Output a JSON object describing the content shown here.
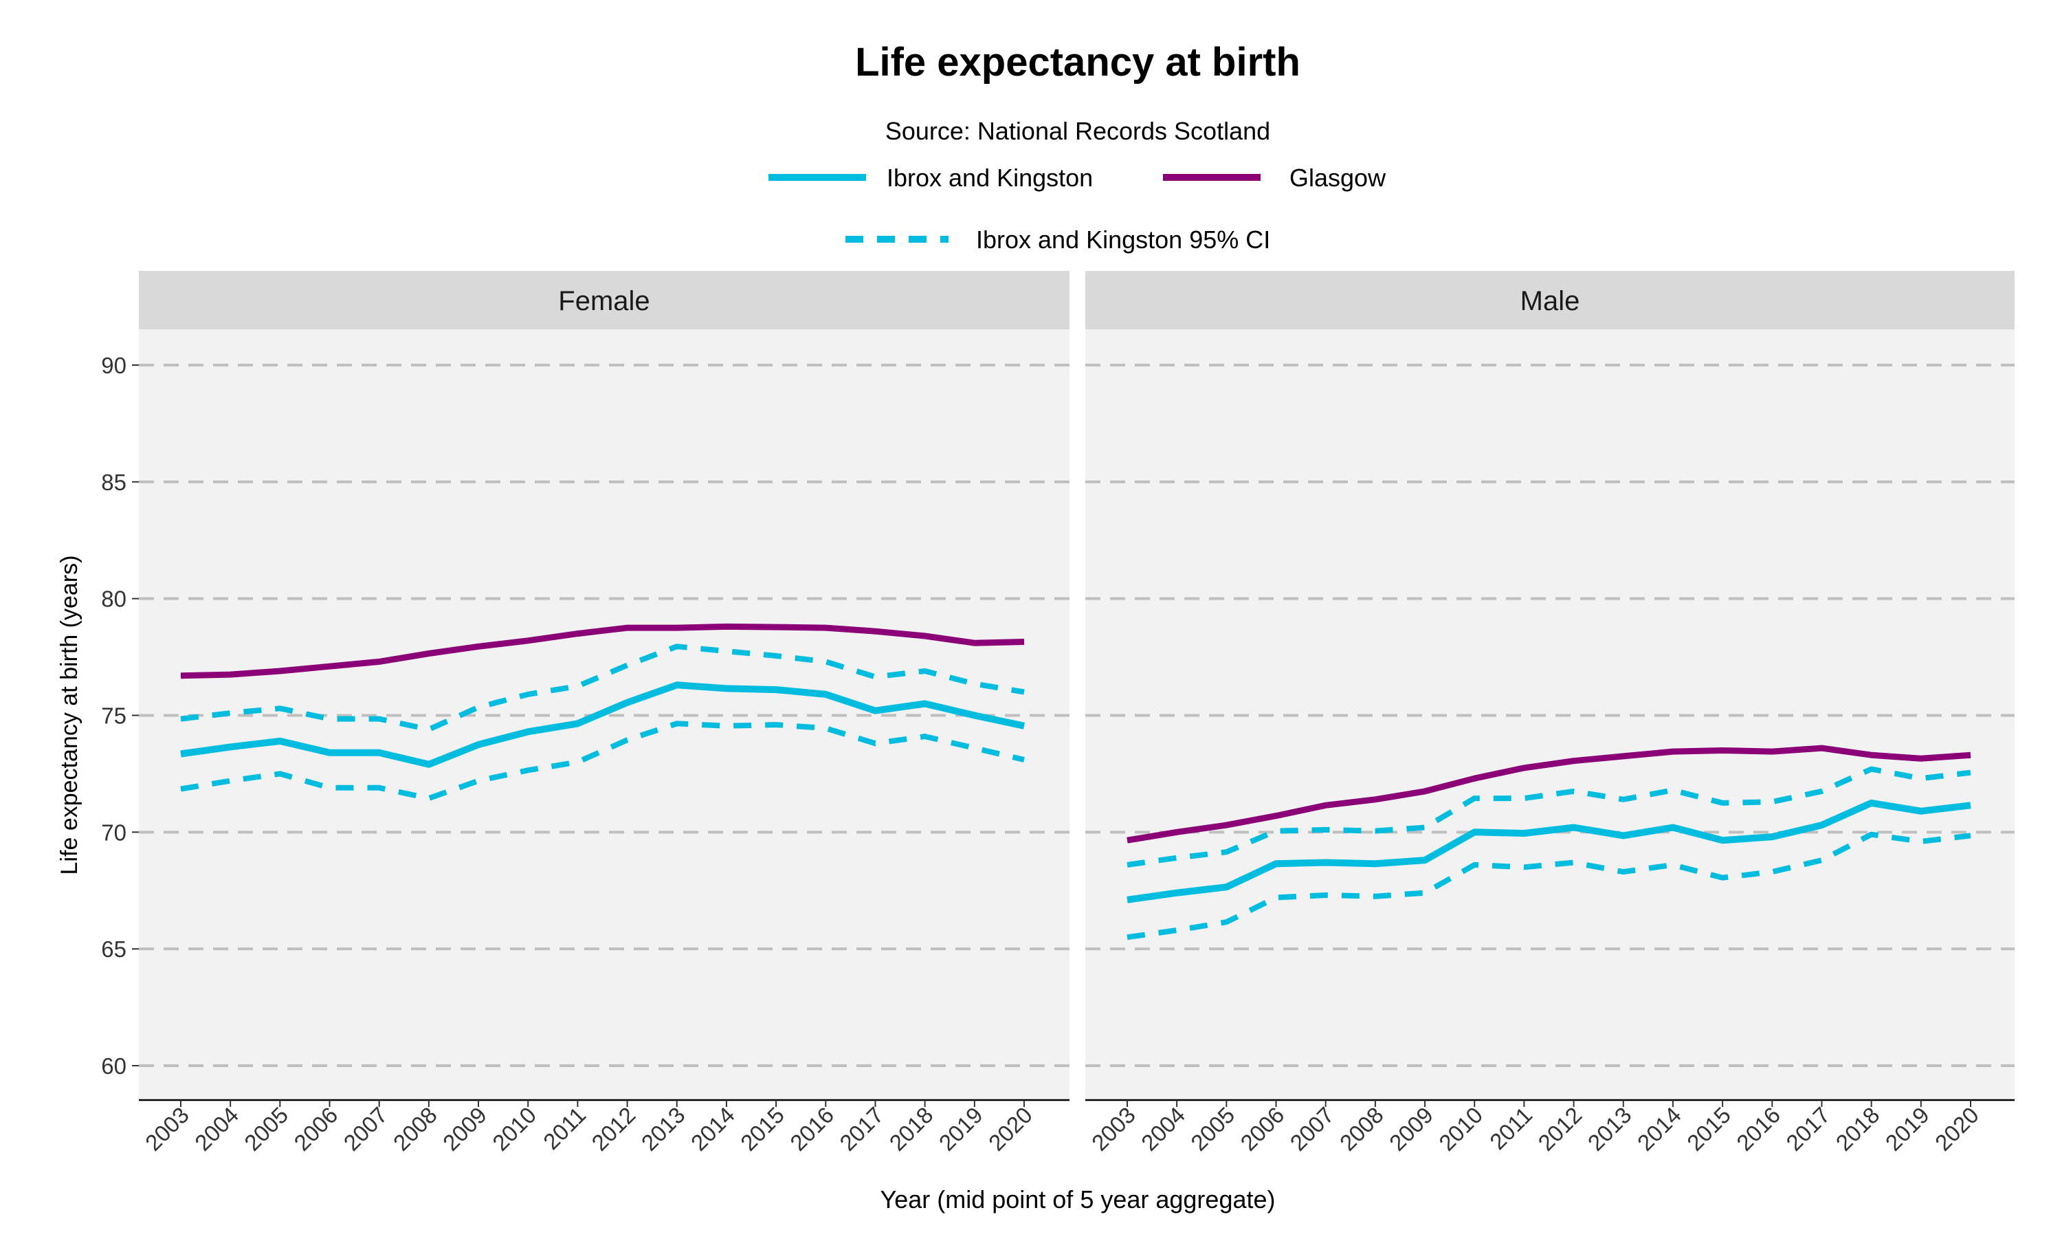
{
  "chart_data": {
    "type": "line",
    "title": "Life expectancy at birth",
    "subtitle": "Source: National Records Scotland",
    "xlabel": "Year (mid point of 5 year aggregate)",
    "ylabel": "Life expectancy at birth (years)",
    "ylim": [
      58.5,
      91.5
    ],
    "yticks": [
      60,
      65,
      70,
      75,
      80,
      85,
      90
    ],
    "grid": "horizontal dashed",
    "legend_position": "top",
    "colors": {
      "ibrox": "#00BDE0",
      "glasgow": "#8B0077",
      "panel_bg": "#F2F2F2",
      "strip_bg": "#D9D9D9",
      "grid": "#BFBFBF"
    },
    "legend": [
      {
        "label": "Ibrox and Kingston",
        "style": "solid",
        "color": "#00BDE0"
      },
      {
        "label": "Glasgow",
        "style": "solid",
        "color": "#8B0077"
      },
      {
        "label": "Ibrox and Kingston 95% CI",
        "style": "dashed",
        "color": "#00BDE0"
      }
    ],
    "x": [
      "2003",
      "2004",
      "2005",
      "2006",
      "2007",
      "2008",
      "2009",
      "2010",
      "2011",
      "2012",
      "2013",
      "2014",
      "2015",
      "2016",
      "2017",
      "2018",
      "2019",
      "2020"
    ],
    "panels": [
      {
        "name": "Female",
        "series": [
          {
            "name": "Glasgow",
            "values": [
              76.7,
              76.75,
              76.9,
              77.1,
              77.3,
              77.65,
              77.95,
              78.2,
              78.5,
              78.75,
              78.75,
              78.8,
              78.78,
              78.75,
              78.6,
              78.4,
              78.1,
              78.15
            ]
          },
          {
            "name": "Ibrox and Kingston",
            "values": [
              73.35,
              73.65,
              73.9,
              73.4,
              73.4,
              72.9,
              73.75,
              74.3,
              74.65,
              75.55,
              76.3,
              76.15,
              76.1,
              75.9,
              75.2,
              75.5,
              75.0,
              74.55
            ]
          },
          {
            "name": "Ibrox and Kingston 95% CI",
            "bound": "upper",
            "values": [
              74.85,
              75.1,
              75.3,
              74.85,
              74.85,
              74.4,
              75.35,
              75.9,
              76.25,
              77.15,
              77.95,
              77.75,
              77.55,
              77.3,
              76.65,
              76.9,
              76.35,
              76.0
            ]
          },
          {
            "name": "Ibrox and Kingston 95% CI",
            "bound": "lower",
            "values": [
              71.85,
              72.2,
              72.5,
              71.9,
              71.9,
              71.45,
              72.2,
              72.65,
              73.0,
              73.95,
              74.65,
              74.55,
              74.6,
              74.45,
              73.8,
              74.1,
              73.6,
              73.1
            ]
          }
        ]
      },
      {
        "name": "Male",
        "series": [
          {
            "name": "Glasgow",
            "values": [
              69.65,
              70.0,
              70.3,
              70.7,
              71.15,
              71.4,
              71.75,
              72.3,
              72.75,
              73.05,
              73.25,
              73.45,
              73.5,
              73.45,
              73.6,
              73.3,
              73.15,
              73.3
            ]
          },
          {
            "name": "Ibrox and Kingston",
            "values": [
              67.1,
              67.4,
              67.65,
              68.65,
              68.7,
              68.65,
              68.8,
              70.0,
              69.95,
              70.2,
              69.85,
              70.2,
              69.65,
              69.8,
              70.3,
              71.25,
              70.9,
              71.15
            ]
          },
          {
            "name": "Ibrox and Kingston 95% CI",
            "bound": "upper",
            "values": [
              68.6,
              68.9,
              69.15,
              70.05,
              70.1,
              70.05,
              70.2,
              71.45,
              71.45,
              71.75,
              71.4,
              71.8,
              71.25,
              71.3,
              71.75,
              72.7,
              72.3,
              72.55
            ]
          },
          {
            "name": "Ibrox and Kingston 95% CI",
            "bound": "lower",
            "values": [
              65.5,
              65.8,
              66.15,
              67.2,
              67.3,
              67.25,
              67.4,
              68.6,
              68.5,
              68.7,
              68.3,
              68.6,
              68.05,
              68.3,
              68.8,
              69.9,
              69.6,
              69.85
            ]
          }
        ]
      }
    ]
  }
}
